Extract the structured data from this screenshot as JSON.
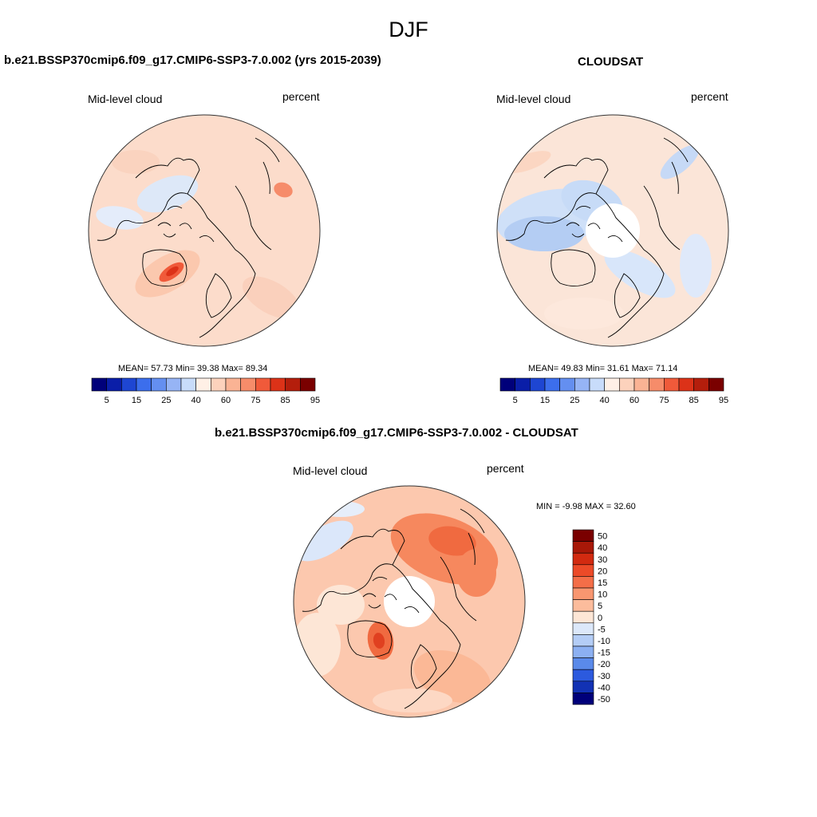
{
  "figure": {
    "title": "DJF"
  },
  "chart_data": [
    {
      "type": "heatmap",
      "projection": "north polar stereographic",
      "title": "b.e21.BSSP370cmip6.f09_g17.CMIP6-SSP3-7.0.002 (yrs 2015-2039)",
      "left_label": "Mid-level cloud",
      "right_label": "percent",
      "stats_text": "MEAN=  57.73  Min=  39.38  Max=  89.34",
      "stats": {
        "mean": 57.73,
        "min": 39.38,
        "max": 89.34
      },
      "colorbar": {
        "orientation": "horizontal",
        "levels": [
          5,
          10,
          15,
          20,
          25,
          30,
          40,
          50,
          60,
          65,
          75,
          80,
          85,
          90,
          95
        ],
        "tick_labels": [
          "5",
          "15",
          "25",
          "40",
          "60",
          "75",
          "85",
          "95"
        ]
      },
      "has_data_gap_at_pole": false
    },
    {
      "type": "heatmap",
      "projection": "north polar stereographic",
      "title": "CLOUDSAT",
      "left_label": "Mid-level cloud",
      "right_label": "percent",
      "stats_text": "MEAN=  49.83  Min=  31.61  Max=  71.14",
      "stats": {
        "mean": 49.83,
        "min": 31.61,
        "max": 71.14
      },
      "colorbar": {
        "orientation": "horizontal",
        "levels": [
          5,
          10,
          15,
          20,
          25,
          30,
          40,
          50,
          60,
          65,
          75,
          80,
          85,
          90,
          95
        ],
        "tick_labels": [
          "5",
          "15",
          "25",
          "40",
          "60",
          "75",
          "85",
          "95"
        ]
      },
      "has_data_gap_at_pole": true
    },
    {
      "type": "heatmap",
      "projection": "north polar stereographic",
      "title": "b.e21.BSSP370cmip6.f09_g17.CMIP6-SSP3-7.0.002 - CLOUDSAT",
      "left_label": "Mid-level cloud",
      "right_label": "percent",
      "stats_text": "MIN =  -9.98 MAX =  32.60",
      "stats": {
        "min": -9.98,
        "max": 32.6
      },
      "colorbar": {
        "orientation": "vertical",
        "levels": [
          -50,
          -40,
          -30,
          -20,
          -15,
          -10,
          -5,
          0,
          5,
          10,
          15,
          20,
          30,
          40,
          50
        ],
        "tick_labels": [
          "50",
          "40",
          "30",
          "20",
          "15",
          "10",
          "5",
          "0",
          "-5",
          "-10",
          "-15",
          "-20",
          "-30",
          "-40",
          "-50"
        ]
      },
      "has_data_gap_at_pole": true
    }
  ],
  "colors": {
    "abs_scale": [
      "#00007a",
      "#0a1ea8",
      "#1e46d2",
      "#3c6eec",
      "#648ff0",
      "#96b4f5",
      "#c8dcfa",
      "#fff0e6",
      "#fcd2bc",
      "#fab394",
      "#f68c6a",
      "#f05a3a",
      "#dc3218",
      "#b41e0c",
      "#7a0000"
    ],
    "diff_scale": [
      "#7a0000",
      "#a81808",
      "#d22a10",
      "#ec4a28",
      "#f46e48",
      "#f89670",
      "#fcbc9c",
      "#fde6d6",
      "#dce8fa",
      "#b4cdf6",
      "#8cb0f2",
      "#5a8aea",
      "#2c5ade",
      "#1232b4",
      "#00007a"
    ]
  }
}
